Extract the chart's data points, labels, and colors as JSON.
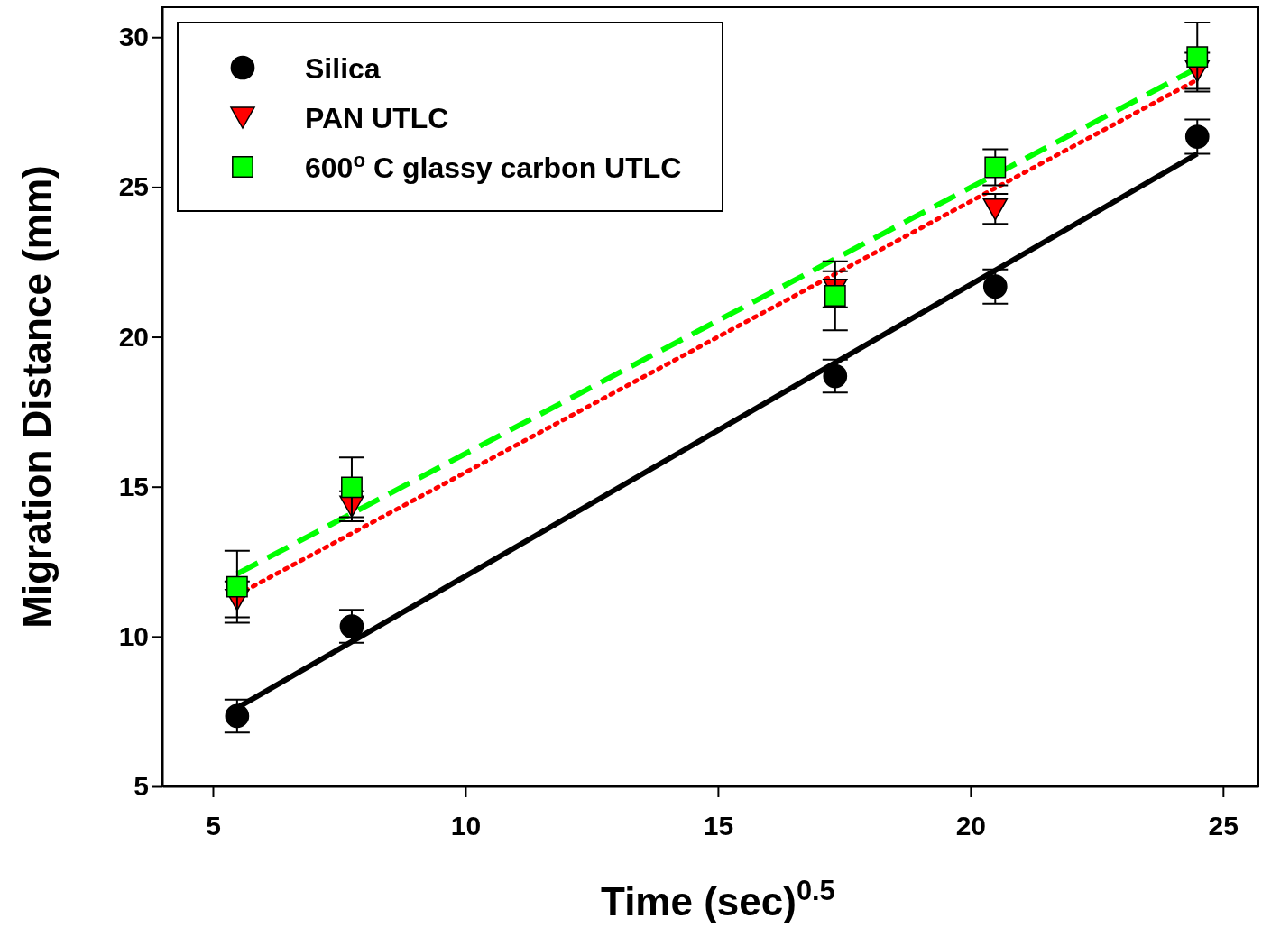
{
  "chart_data": {
    "type": "scatter",
    "xlabel": "Time (sec)$^{0.5}$",
    "ylabel": "Migration Distance (mm)",
    "xlim": [
      4,
      25.7
    ],
    "ylim": [
      5,
      31
    ],
    "xticks": [
      5,
      10,
      15,
      20,
      25
    ],
    "yticks": [
      5,
      10,
      15,
      20,
      25,
      30
    ],
    "grid": false,
    "legend": "top left",
    "series": [
      {
        "name": "Silica",
        "marker": "circle",
        "color": "#000000",
        "x": [
          5.48,
          7.75,
          17.32,
          20.49,
          24.49
        ],
        "values": [
          7.35,
          10.34,
          18.69,
          21.68,
          26.68
        ],
        "errors": [
          0.55,
          0.55,
          0.55,
          0.57,
          0.57
        ]
      },
      {
        "name": "PAN UTLC",
        "marker": "triangle",
        "color": "#ff0000",
        "x": [
          5.48,
          7.75,
          17.32,
          20.49,
          24.49
        ],
        "values": [
          11.24,
          14.35,
          21.59,
          24.27,
          28.88
        ],
        "errors": [
          0.6,
          0.5,
          0.6,
          0.5,
          0.6
        ]
      },
      {
        "name": "600$^{o}$ C glassy carbon UTLC",
        "marker": "square",
        "color": "#00ff00",
        "x": [
          5.48,
          7.75,
          17.32,
          20.49,
          24.49
        ],
        "values": [
          11.66,
          14.98,
          21.37,
          25.66,
          29.34
        ],
        "errors": [
          1.2,
          1.0,
          1.15,
          0.6,
          1.15
        ]
      },
      {
        "type": "line",
        "line_style": "solid",
        "color": "#000000",
        "x": [
          5.48,
          24.49
        ],
        "values": [
          7.62,
          26.11
        ]
      },
      {
        "type": "line",
        "line_style": "dotted",
        "color": "#ff0000",
        "x": [
          5.48,
          24.49
        ],
        "values": [
          11.39,
          28.58
        ]
      },
      {
        "type": "line",
        "line_style": "dashed",
        "color": "#00ff00",
        "x": [
          5.48,
          24.49
        ],
        "values": [
          12.09,
          28.97
        ]
      }
    ]
  }
}
